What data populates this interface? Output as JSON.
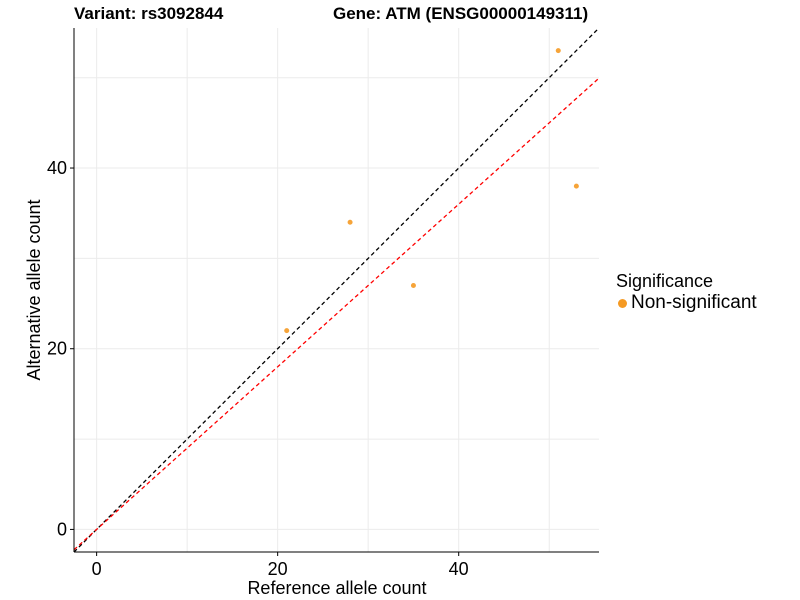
{
  "titles": {
    "variant": "Variant: rs3092844",
    "gene": "Gene: ATM (ENSG00000149311)"
  },
  "legend": {
    "title": "Significance",
    "items": [
      {
        "label": "Non-significant",
        "color": "#f59a23"
      }
    ]
  },
  "chart_data": {
    "type": "scatter",
    "xlabel": "Reference allele count",
    "ylabel": "Alternative allele count",
    "xlim": [
      -2.5,
      55.5
    ],
    "ylim": [
      -2.5,
      55.5
    ],
    "x_ticks": [
      0,
      20,
      40
    ],
    "y_ticks": [
      0,
      20,
      40
    ],
    "grid": true,
    "legend_position": "right",
    "series": [
      {
        "name": "Non-significant",
        "color": "#f59a23",
        "points": [
          {
            "x": 21,
            "y": 22
          },
          {
            "x": 28,
            "y": 34
          },
          {
            "x": 35,
            "y": 27
          },
          {
            "x": 51,
            "y": 53
          },
          {
            "x": 53,
            "y": 38
          }
        ]
      }
    ],
    "reference_lines": [
      {
        "slope": 1.0,
        "intercept": 0,
        "color": "#000000",
        "style": "dashed"
      },
      {
        "slope": 0.9,
        "intercept": 0,
        "color": "#ff0000",
        "style": "dashed"
      }
    ]
  }
}
